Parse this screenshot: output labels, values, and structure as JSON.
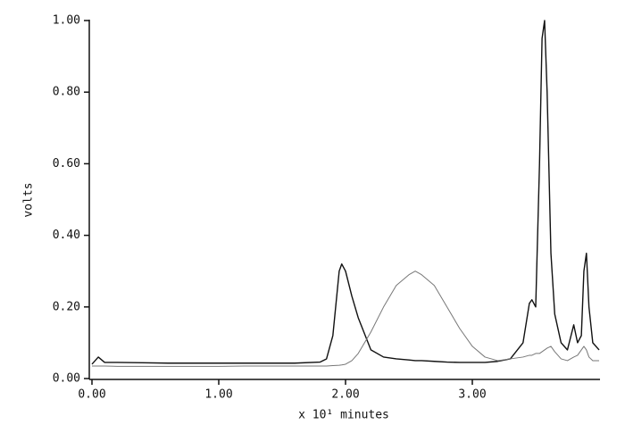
{
  "chart_data": {
    "type": "line",
    "xlabel": "x 10¹ minutes",
    "ylabel": "volts",
    "x": [
      0,
      0.05,
      0.1,
      0.2,
      0.4,
      0.6,
      0.8,
      1.0,
      1.2,
      1.4,
      1.6,
      1.8,
      1.85,
      1.9,
      1.95,
      1.97,
      2.0,
      2.05,
      2.1,
      2.2,
      2.3,
      2.4,
      2.5,
      2.55,
      2.6,
      2.7,
      2.8,
      2.9,
      3.0,
      3.1,
      3.2,
      3.3,
      3.4,
      3.45,
      3.47,
      3.5,
      3.53,
      3.55,
      3.57,
      3.59,
      3.62,
      3.65,
      3.7,
      3.75,
      3.8,
      3.83,
      3.86,
      3.88,
      3.9,
      3.92,
      3.95,
      4.0
    ],
    "series": [
      {
        "color": "#111111",
        "values": [
          0.04,
          0.06,
          0.045,
          0.045,
          0.044,
          0.043,
          0.043,
          0.043,
          0.043,
          0.043,
          0.043,
          0.046,
          0.055,
          0.12,
          0.3,
          0.32,
          0.3,
          0.23,
          0.17,
          0.08,
          0.06,
          0.055,
          0.052,
          0.05,
          0.05,
          0.048,
          0.046,
          0.045,
          0.045,
          0.045,
          0.048,
          0.055,
          0.1,
          0.21,
          0.22,
          0.2,
          0.6,
          0.95,
          1.0,
          0.8,
          0.35,
          0.18,
          0.1,
          0.08,
          0.15,
          0.1,
          0.12,
          0.3,
          0.35,
          0.2,
          0.1,
          0.08
        ]
      },
      {
        "color": "#777777",
        "values": [
          0.035,
          0.035,
          0.035,
          0.034,
          0.034,
          0.034,
          0.034,
          0.034,
          0.035,
          0.035,
          0.035,
          0.035,
          0.035,
          0.036,
          0.037,
          0.038,
          0.04,
          0.05,
          0.07,
          0.13,
          0.2,
          0.26,
          0.29,
          0.3,
          0.29,
          0.26,
          0.2,
          0.14,
          0.09,
          0.06,
          0.05,
          0.055,
          0.06,
          0.065,
          0.065,
          0.07,
          0.07,
          0.075,
          0.08,
          0.085,
          0.09,
          0.075,
          0.055,
          0.05,
          0.06,
          0.065,
          0.08,
          0.09,
          0.08,
          0.06,
          0.05,
          0.05
        ]
      }
    ],
    "xlim": [
      0,
      4.0
    ],
    "xticks": [
      {
        "value": 0,
        "label": "0.00"
      },
      {
        "value": 1,
        "label": "1.00"
      },
      {
        "value": 2,
        "label": "2.00"
      },
      {
        "value": 3,
        "label": "3.00"
      }
    ],
    "ylim": [
      0,
      1
    ],
    "yticks": [
      {
        "value": 0,
        "label": "0.00"
      },
      {
        "value": 0.2,
        "label": "0.20"
      },
      {
        "value": 0.4,
        "label": "0.40"
      },
      {
        "value": 0.6,
        "label": "0.60"
      },
      {
        "value": 0.8,
        "label": "0.80"
      },
      {
        "value": 1,
        "label": "1.00"
      }
    ],
    "grid": false
  }
}
